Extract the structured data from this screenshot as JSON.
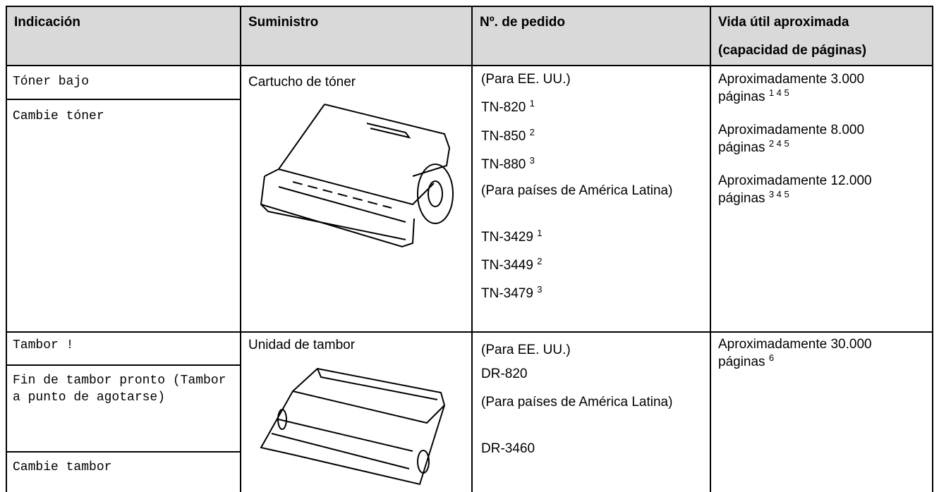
{
  "table": {
    "headers": [
      "Indicación",
      "Suministro",
      "Nº. de pedido",
      "Vida útil aproximada (capacidad de páginas)"
    ],
    "rows": [
      {
        "indications": [
          "Tóner bajo",
          "Cambie tóner"
        ],
        "supply": "Cartucho de tóner",
        "orders": [
          {
            "text": "(Para EE. UU.)"
          },
          {
            "text": "TN-820",
            "note": "1"
          },
          {
            "text": "TN-850",
            "note": "2"
          },
          {
            "text": "TN-880",
            "note": "3"
          },
          {
            "text": "(Para países de América Latina)"
          },
          {
            "text": "TN-3429",
            "note": "1"
          },
          {
            "text": "TN-3449",
            "note": "2"
          },
          {
            "text": "TN-3479",
            "note": "3"
          }
        ],
        "life": [
          {
            "text": "Aproximadamente 3.000 páginas",
            "notes": "1 4 5"
          },
          {
            "text": "Aproximadamente 8.000 páginas",
            "notes": "2 4 5"
          },
          {
            "text": "Aproximadamente 12.000 páginas",
            "notes": "3 4 5"
          }
        ]
      },
      {
        "indications": [
          "Tambor !",
          "Fin de tambor pronto (Tambor a punto de agotarse)",
          "Cambie tambor"
        ],
        "supply": "Unidad de tambor",
        "orders": [
          {
            "text": "(Para EE. UU.)"
          },
          {
            "text": "DR-820"
          },
          {
            "text": "(Para países de América Latina)"
          },
          {
            "text": "DR-3460"
          }
        ],
        "life": [
          {
            "text": "Aproximadamente 30.000 páginas",
            "notes": "6"
          }
        ]
      }
    ]
  }
}
